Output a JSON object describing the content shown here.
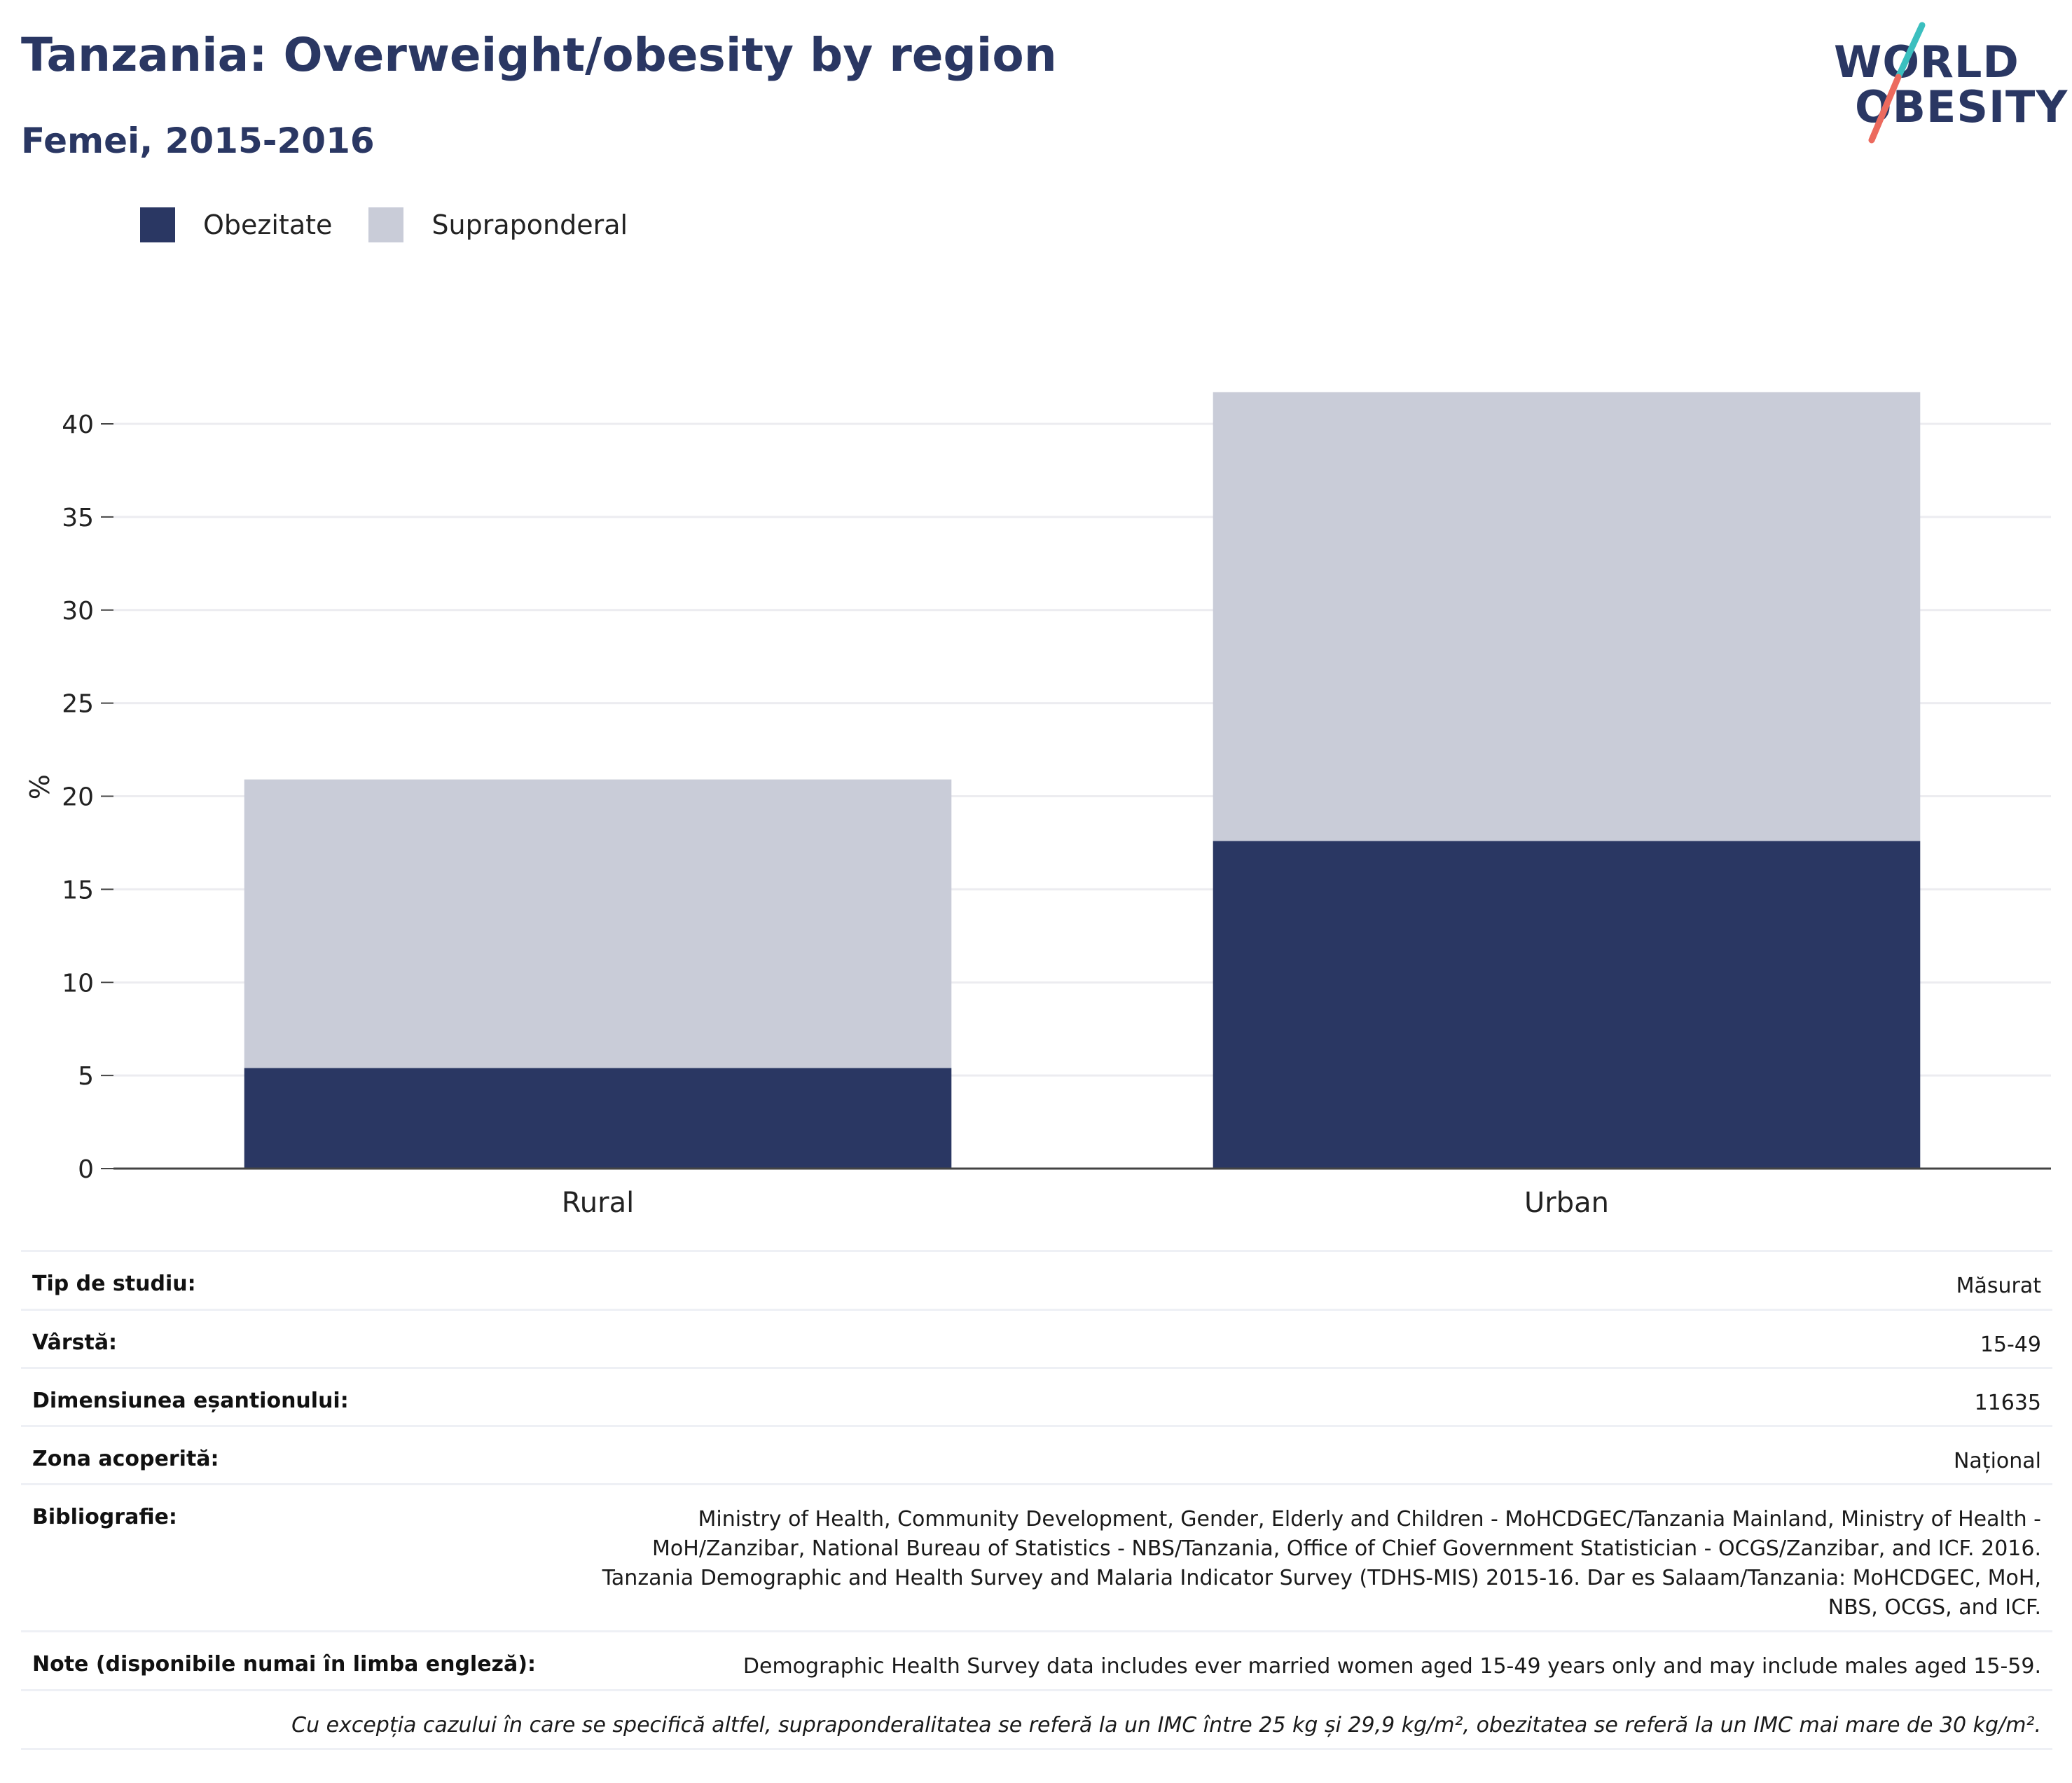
{
  "header": {
    "title": "Tanzania: Overweight/obesity by region",
    "subtitle": "Femei, 2015-2016"
  },
  "logo": {
    "line1": "WORLD",
    "line2": "OBESITY"
  },
  "colors": {
    "obesity": "#2a3763",
    "overweight": "#c9ccd8",
    "logo_teal": "#3bbfbf",
    "logo_coral": "#ec6a5e"
  },
  "chart_data": {
    "type": "bar",
    "stacked": true,
    "categories": [
      "Rural",
      "Urban"
    ],
    "series": [
      {
        "name": "Obezitate",
        "values": [
          5.4,
          17.6
        ]
      },
      {
        "name": "Supraponderal",
        "values": [
          15.5,
          24.1
        ]
      }
    ],
    "ylabel": "%",
    "ylim": [
      0,
      42
    ],
    "yticks": [
      0,
      5,
      10,
      15,
      20,
      25,
      30,
      35,
      40
    ],
    "grid": true,
    "legend_position": "top-left"
  },
  "meta": {
    "rows": [
      {
        "label": "Tip de studiu:",
        "value": "Măsurat"
      },
      {
        "label": "Vârstă:",
        "value": "15-49"
      },
      {
        "label": "Dimensiunea eșantionului:",
        "value": "11635"
      },
      {
        "label": "Zona acoperită:",
        "value": "Național"
      },
      {
        "label": "Bibliografie:",
        "value": "Ministry of Health, Community Development, Gender, Elderly and Children - MoHCDGEC/Tanzania Mainland, Ministry of Health - MoH/Zanzibar, National Bureau of Statistics - NBS/Tanzania, Office of Chief Government Statistician - OCGS/Zanzibar, and ICF. 2016. Tanzania Demographic and Health Survey and Malaria Indicator Survey (TDHS-MIS) 2015-16. Dar es Salaam/Tanzania: MoHCDGEC, MoH, NBS, OCGS, and ICF."
      },
      {
        "label": "Note (disponibile numai în limba engleză):",
        "value": "Demographic Health Survey data includes ever married women aged 15-49 years only and may include males aged 15-59."
      }
    ],
    "footnote": "Cu excepția cazului în care se specifică altfel, supraponderalitatea se referă la un IMC între 25 kg și 29,9 kg/m², obezitatea se referă la un IMC mai mare de 30 kg/m²."
  }
}
